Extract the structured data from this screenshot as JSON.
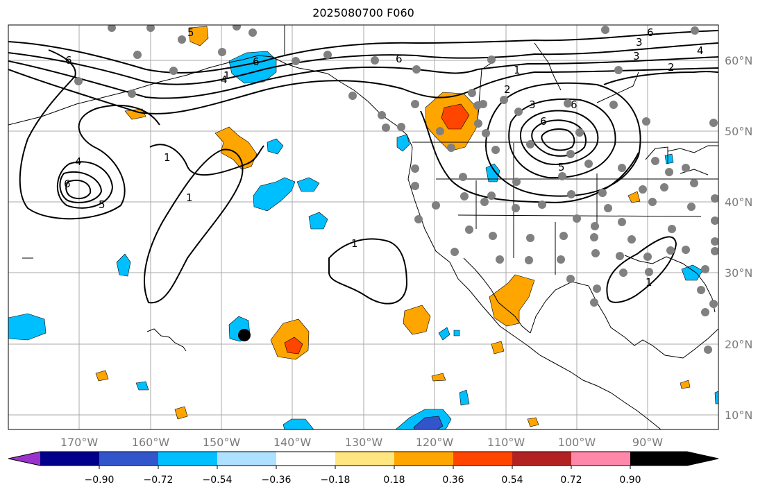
{
  "title": "2025080700 F060",
  "map": {
    "lon_labels": [
      "170°W",
      "160°W",
      "150°W",
      "140°W",
      "130°W",
      "120°W",
      "110°W",
      "100°W",
      "90°W"
    ],
    "lat_labels": [
      "60°N",
      "50°N",
      "40°N",
      "30°N",
      "20°N",
      "10°N"
    ],
    "gridlines": true,
    "contour_labels": [
      "5",
      "6",
      "4",
      "6",
      "6",
      "1",
      "2",
      "3",
      "6",
      "5",
      "3",
      "4",
      "6",
      "2",
      "3",
      "6",
      "1",
      "4",
      "6",
      "5",
      "1",
      "1",
      "1",
      "1"
    ],
    "marker": "black-dot"
  },
  "colorbar": {
    "tick_labels": [
      "−0.90",
      "−0.72",
      "−0.54",
      "−0.36",
      "−0.18",
      "0.18",
      "0.36",
      "0.54",
      "0.72",
      "0.90"
    ],
    "colors": [
      "#9933cc",
      "#00008b",
      "#3355cc",
      "#00bfff",
      "#aee0ff",
      "#ffffff",
      "#ffe680",
      "#ffa500",
      "#ff4500",
      "#b22222",
      "#ff88aa"
    ]
  }
}
